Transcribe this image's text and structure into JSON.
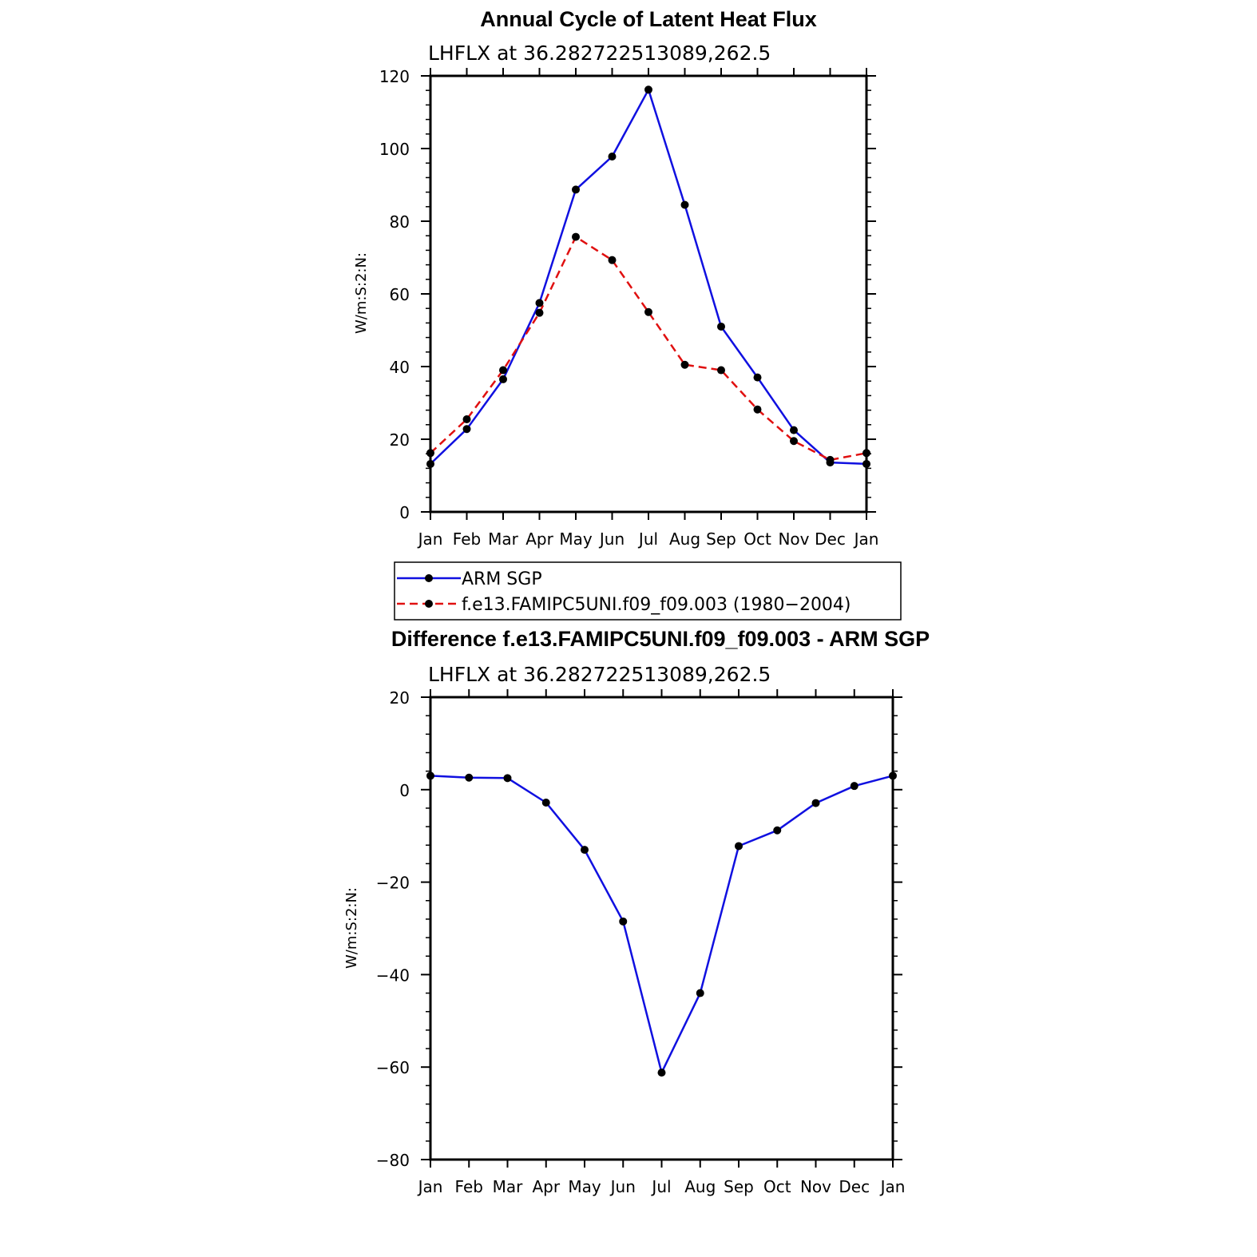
{
  "chart_data": [
    {
      "type": "line",
      "title": "Annual Cycle of Latent Heat Flux",
      "subtitle": "LHFLX  at  36.282722513089,262.5",
      "ylabel": "W/m:S:2:N:",
      "xlabel": "",
      "categories": [
        "Jan",
        "Feb",
        "Mar",
        "Apr",
        "May",
        "Jun",
        "Jul",
        "Aug",
        "Sep",
        "Oct",
        "Nov",
        "Dec",
        "Jan"
      ],
      "ylim": [
        0,
        120
      ],
      "yticks": [
        "0",
        "20",
        "40",
        "60",
        "80",
        "100",
        "120"
      ],
      "grid": false,
      "series": [
        {
          "name": "ARM SGP",
          "color": "#1010e0",
          "dash": "solid",
          "values": [
            13.2,
            22.8,
            36.5,
            57.5,
            88.7,
            97.8,
            116.2,
            84.5,
            51.0,
            37.0,
            22.5,
            13.6,
            13.2
          ]
        },
        {
          "name": "f.e13.FAMIPC5UNI.f09_f09.003 (1980−2004)",
          "color": "#e01010",
          "dash": "dashed",
          "values": [
            16.2,
            25.5,
            39.0,
            54.8,
            75.7,
            69.3,
            55.0,
            40.5,
            39.0,
            28.2,
            19.5,
            14.3,
            16.2
          ]
        }
      ],
      "legend": {
        "position": "bottom"
      }
    },
    {
      "type": "line",
      "title": "Difference f.e13.FAMIPC5UNI.f09_f09.003 - ARM SGP",
      "subtitle": "LHFLX  at  36.282722513089,262.5",
      "ylabel": "W/m:S:2:N:",
      "xlabel": "",
      "categories": [
        "Jan",
        "Feb",
        "Mar",
        "Apr",
        "May",
        "Jun",
        "Jul",
        "Aug",
        "Sep",
        "Oct",
        "Nov",
        "Dec",
        "Jan"
      ],
      "ylim": [
        -80,
        20
      ],
      "yticks": [
        "−80",
        "−60",
        "−40",
        "−20",
        "0",
        "20"
      ],
      "grid": false,
      "series": [
        {
          "name": "Difference",
          "color": "#1010e0",
          "dash": "solid",
          "values": [
            3.0,
            2.6,
            2.5,
            -2.8,
            -13.0,
            -28.5,
            -61.2,
            -44.0,
            -12.2,
            -8.8,
            -2.9,
            0.8,
            3.0
          ]
        }
      ]
    }
  ]
}
